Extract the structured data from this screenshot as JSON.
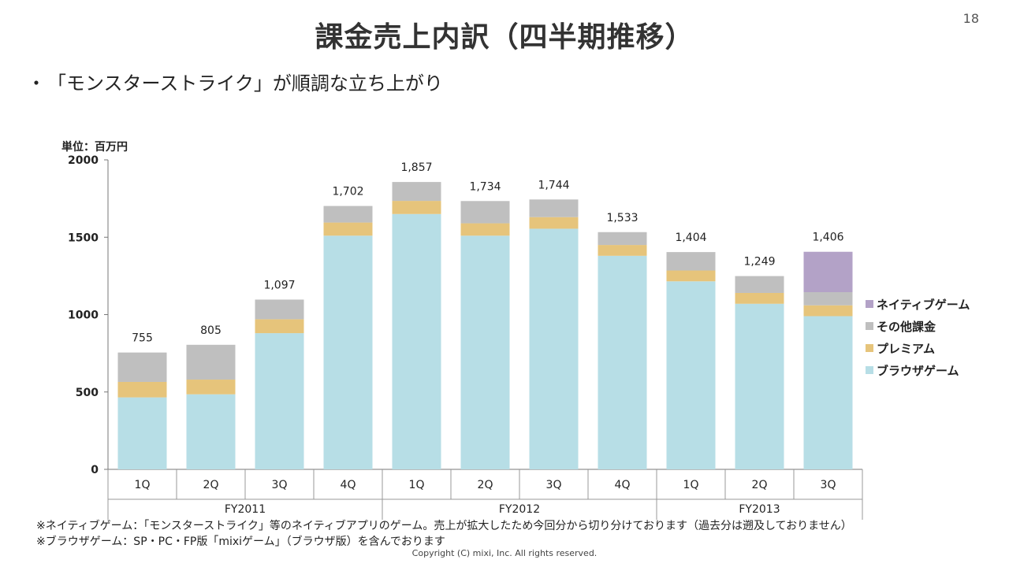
{
  "slide": {
    "title": "課金売上内訳（四半期推移）",
    "page_number": "18",
    "bullet_mark": "・",
    "bullet_text": "「モンスターストライク」が順調な立ち上がり",
    "unit_label": "単位：百万円"
  },
  "notes": [
    "※ネイティブゲーム：「モンスターストライク」等のネイティブアプリのゲーム。売上が拡大したため今回分から切り分けております（過去分は遡及しておりません）",
    "※ブラウザゲーム：SP・PC・FP版「mixiゲーム」（ブラウザ版）を含んでおります"
  ],
  "copyright": "Copyright (C) mixi, Inc. All rights reserved.",
  "chart_data": {
    "type": "bar",
    "stacked": true,
    "categories": [
      "1Q",
      "2Q",
      "3Q",
      "4Q",
      "1Q",
      "2Q",
      "3Q",
      "4Q",
      "1Q",
      "2Q",
      "3Q"
    ],
    "groups": [
      {
        "label": "FY2011",
        "count": 4
      },
      {
        "label": "FY2012",
        "count": 4
      },
      {
        "label": "FY2013",
        "count": 3
      }
    ],
    "series": [
      {
        "name": "ブラウザゲーム",
        "color": "#b7dee6",
        "values": [
          465,
          485,
          880,
          1510,
          1650,
          1510,
          1555,
          1380,
          1215,
          1070,
          990
        ]
      },
      {
        "name": "プレミアム",
        "color": "#e6c47b",
        "values": [
          100,
          95,
          90,
          85,
          85,
          80,
          75,
          70,
          70,
          70,
          70
        ]
      },
      {
        "name": "その他課金",
        "color": "#bfbfbf",
        "values": [
          190,
          225,
          127,
          107,
          122,
          144,
          114,
          83,
          119,
          109,
          85
        ]
      },
      {
        "name": "ネイティブゲーム",
        "color": "#b3a2c7",
        "values": [
          0,
          0,
          0,
          0,
          0,
          0,
          0,
          0,
          0,
          0,
          261
        ]
      }
    ],
    "totals": [
      "755",
      "805",
      "1,097",
      "1,702",
      "1,857",
      "1,734",
      "1,744",
      "1,533",
      "1,404",
      "1,249",
      "1,406"
    ],
    "ylim": [
      0,
      2000
    ],
    "yticks": [
      0,
      500,
      1000,
      1500,
      2000
    ],
    "legend_position": "right",
    "grid": false
  }
}
